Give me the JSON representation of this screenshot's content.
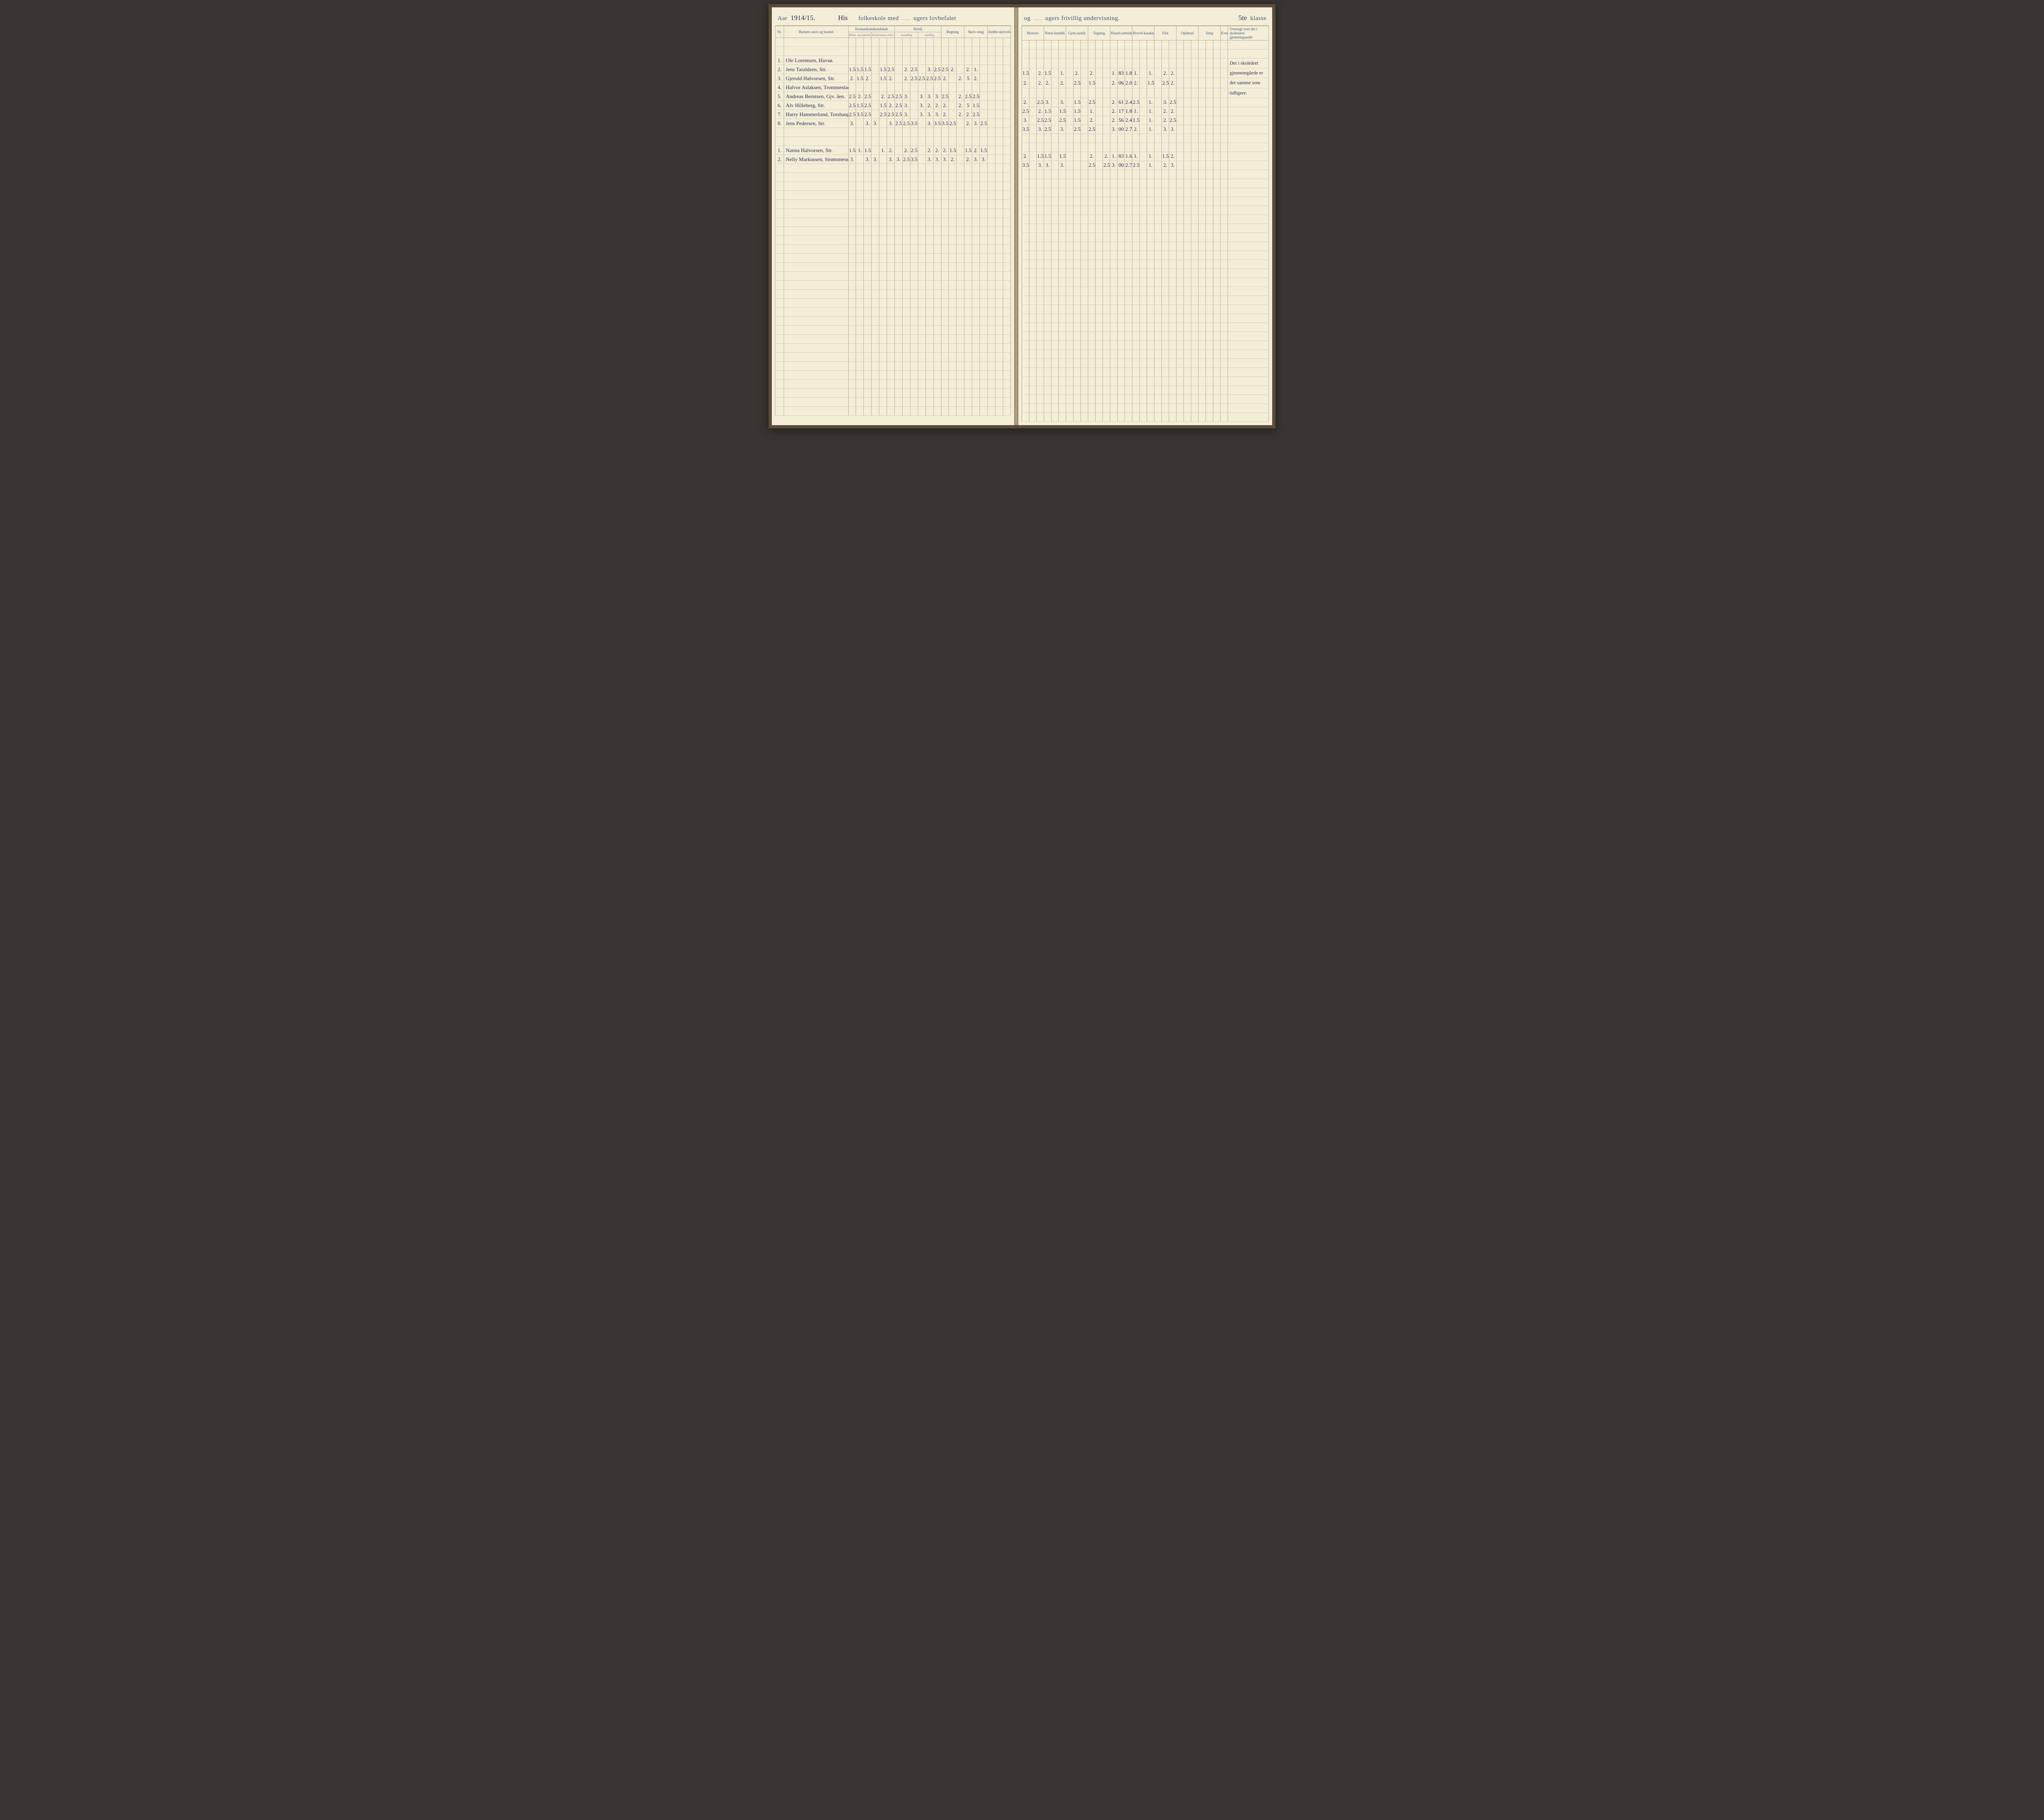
{
  "header": {
    "aar_label": "Aar",
    "aar_value": "1914/15.",
    "school_name": "His",
    "folkeskole": "folkeskole med",
    "lovbefalet": "ugers lovbefalet",
    "og": "og",
    "frivillig": "ugers frivillig undervisning.",
    "klasse_value": "5te",
    "klasse_label": "klasse"
  },
  "columns_left": {
    "nr": "Nr.",
    "name": "Barnets navn og bosted",
    "kristendom": "Kristendomskundskab",
    "bibel": "Bibel- og kirkehistorie",
    "katekismus": "Katekismus eller forklaring",
    "norsk": "Norsk",
    "mundtlig": "mundtlig",
    "skriftlig": "skriftlig",
    "regning": "Regning",
    "skrivning": "Skriv-ning",
    "jordbe": "Jordbe-skrivelse"
  },
  "columns_right": {
    "historie": "Historie",
    "natur": "Natur-kundsk",
    "gym": "Gym-nastik",
    "tegning": "Tegning",
    "haand": "Haand-arbeide",
    "hoved": "Hoved-karakter",
    "flid": "Flid",
    "opforsel": "Opførsel",
    "sang": "Sang",
    "evner": "Evner",
    "oversigt": "Oversigt over det i skoleaaret gjennemgaaede"
  },
  "students": [
    {
      "nr": "1.",
      "name": "Ole Lorentsen, Havsø.",
      "left": [
        "",
        "",
        "",
        "",
        "",
        "",
        "",
        "",
        "",
        "",
        "",
        "",
        "",
        "",
        "",
        "",
        ""
      ],
      "right": [
        "",
        "",
        "",
        "",
        "",
        "",
        "",
        "",
        "",
        "",
        "",
        "",
        "",
        "",
        "",
        "",
        ""
      ]
    },
    {
      "nr": "2.",
      "name": "Jens Taraldsen, Str.",
      "left": [
        "1.5",
        "1.5",
        "1.5",
        "",
        "1.5",
        "2.5",
        "",
        "2.",
        "2.5",
        "",
        "3.",
        "2.5",
        "2.5",
        "2.",
        "",
        "2.",
        "1."
      ],
      "right": [
        "1.5",
        "",
        "2.",
        "1.5",
        "",
        "1.",
        "",
        "2.",
        "",
        "2.",
        "",
        "",
        "1.",
        "83",
        "1.86",
        "1.",
        "",
        "1.",
        "",
        "2.",
        "2."
      ]
    },
    {
      "nr": "3.",
      "name": "Gjeruld Halvorsen, Str.",
      "left": [
        "2.",
        "1.5",
        "2.",
        "",
        "1.5",
        "2.",
        "",
        "2.",
        "2.5",
        "2.5",
        "2.5",
        "2.5",
        "2.",
        "",
        "2.",
        "5",
        "2."
      ],
      "right": [
        "2.",
        "",
        "2.",
        "2.",
        "",
        "2.",
        "",
        "2.5",
        "",
        "1.5",
        "",
        "",
        "2.",
        "06",
        "2.00",
        "2.",
        "",
        "1.5",
        "",
        "2.5",
        "2."
      ]
    },
    {
      "nr": "4.",
      "name": "Halvor Aslaksen, Trommeslad.",
      "left": [
        "",
        "",
        "",
        "",
        "",
        "",
        "",
        "",
        "",
        "",
        "",
        "",
        "",
        "",
        "",
        "",
        ""
      ],
      "right": [
        "",
        "",
        "",
        "",
        "",
        "",
        "",
        "",
        "",
        "",
        "",
        "",
        "",
        "",
        "",
        "",
        ""
      ]
    },
    {
      "nr": "5.",
      "name": "Andreas Berntsen, Gjv. åen.",
      "left": [
        "2.5",
        "2.",
        "2.5",
        "",
        "2.",
        "2.5",
        "2.5",
        "3.",
        "",
        "3.",
        "3.",
        "3.",
        "2.5",
        "",
        "2.",
        "2.5",
        "2.5"
      ],
      "right": [
        "2.",
        "",
        "2.5",
        "3.",
        "",
        "3.",
        "",
        "1.5",
        "",
        "2.5",
        "",
        "",
        "2.",
        "61",
        "2.41",
        "2.5",
        "",
        "1.",
        "",
        "3.",
        "2.5"
      ]
    },
    {
      "nr": "6.",
      "name": "Alv Hilleberg, Str.",
      "left": [
        "2.5",
        "1.5",
        "2.5",
        "",
        "1.5",
        "2.",
        "2.5",
        "3.",
        "",
        "3.",
        "2.",
        "2.",
        "2.",
        "",
        "2.",
        "5",
        "1.5"
      ],
      "right": [
        "2.5",
        "",
        "2.",
        "1.5",
        "",
        "1.5",
        "",
        "1.5",
        "",
        "1.",
        "",
        "",
        "2.",
        "17",
        "1.82",
        "1.",
        "",
        "1.",
        "",
        "2.",
        "2."
      ]
    },
    {
      "nr": "7.",
      "name": "Harry Hammerlund, Torshaug.",
      "left": [
        "2.5",
        "3.5",
        "2.5",
        "",
        "2.5",
        "2.5",
        "2.5",
        "3.",
        "",
        "3.",
        "3.",
        "3.",
        "2.",
        "",
        "2.",
        "2.",
        "2.5"
      ],
      "right": [
        "3.",
        "",
        "2.5",
        "2.5",
        "",
        "2.5",
        "",
        "1.5",
        "",
        "2.",
        "",
        "",
        "2.",
        "56",
        "2.41",
        "1.5",
        "",
        "1.",
        "",
        "2.",
        "2.5"
      ]
    },
    {
      "nr": "8.",
      "name": "Jens Pedersen, Str.",
      "left": [
        "3.",
        "",
        "3.",
        "3.",
        "",
        "3.",
        "2.5",
        "2.5",
        "3.5",
        "",
        "3.",
        "3.5",
        "3.5",
        "2.5",
        "",
        "2.",
        "3.",
        "2.5"
      ],
      "right": [
        "3.5",
        "",
        "3.",
        "2.5",
        "",
        "3.",
        "",
        "2.5",
        "",
        "2.5",
        "",
        "",
        "3.",
        "00",
        "2.77",
        "2.",
        "",
        "1.",
        "",
        "3.",
        "3."
      ]
    }
  ],
  "students2": [
    {
      "nr": "1.",
      "name": "Nanna Halvorsen, Str.",
      "left": [
        "1.5",
        "1.",
        "1.5",
        "",
        "1.",
        "2.",
        "",
        "2.",
        "2.5",
        "",
        "2.",
        "2.",
        "2.",
        "1.5",
        "",
        "1.5",
        "2.",
        "1.5"
      ],
      "right": [
        "2.",
        "",
        "1.5",
        "1.5",
        "",
        "1.5",
        "",
        "",
        "",
        "2.",
        "",
        "2.",
        "1.",
        "83",
        "1.64",
        "1.",
        "",
        "1.",
        "",
        "1.5",
        "2."
      ]
    },
    {
      "nr": "2.",
      "name": "Nelly Markussen, Strømmess.",
      "left": [
        "3.",
        "",
        "3.",
        "3.",
        "",
        "3.",
        "3.",
        "2.5",
        "3.5",
        "",
        "3.",
        "3.",
        "3.",
        "2.",
        "",
        "2.",
        "3.",
        "3."
      ],
      "right": [
        "3.5",
        "",
        "3.",
        "3.",
        "",
        "3.",
        "",
        "",
        "",
        "2.5",
        "",
        "2.5",
        "3.",
        "00",
        "2.73",
        "2.5",
        "",
        "1.",
        "",
        "2.",
        "3."
      ]
    }
  ],
  "notes": [
    "Det i skoleåret",
    "gjennemgåede er",
    "det samme som",
    "tidligere."
  ],
  "blank_rows": 28,
  "colors": {
    "paper": "#f4eed9",
    "ink_print": "#3a5378",
    "ink_hand": "#2a2a55",
    "rule": "#b8ac89"
  }
}
